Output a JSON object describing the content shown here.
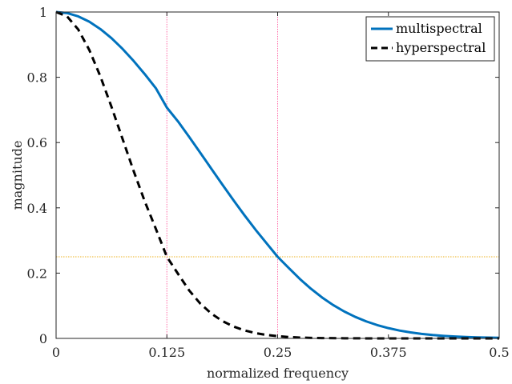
{
  "chart_data": {
    "type": "line",
    "title": "",
    "xlabel": "normalized frequency",
    "ylabel": "magnitude",
    "xlim": [
      0,
      0.5
    ],
    "ylim": [
      0,
      1
    ],
    "x_ticks": [
      0,
      0.125,
      0.25,
      0.375,
      0.5
    ],
    "x_tick_labels": [
      "0",
      "0.125",
      "0.25",
      "0.375",
      "0.5"
    ],
    "y_ticks": [
      0,
      0.2,
      0.4,
      0.6,
      0.8,
      1
    ],
    "y_tick_labels": [
      "0",
      "0.2",
      "0.4",
      "0.6",
      "0.8",
      "1"
    ],
    "grid": false,
    "legend_position": "top-right",
    "series": [
      {
        "name": "multispectral",
        "color": "#0072BD",
        "style": "solid",
        "x": [
          0,
          0.0125,
          0.025,
          0.0375,
          0.05,
          0.0625,
          0.075,
          0.0875,
          0.1,
          0.1125,
          0.125,
          0.1375,
          0.15,
          0.1625,
          0.175,
          0.1875,
          0.2,
          0.2125,
          0.225,
          0.2375,
          0.25,
          0.2625,
          0.275,
          0.2875,
          0.3,
          0.3125,
          0.325,
          0.3375,
          0.35,
          0.3625,
          0.375,
          0.3875,
          0.4,
          0.4125,
          0.425,
          0.4375,
          0.45,
          0.4625,
          0.475,
          0.4875,
          0.5
        ],
        "y": [
          1.0,
          0.9967,
          0.9866,
          0.9702,
          0.9477,
          0.9198,
          0.887,
          0.8501,
          0.8098,
          0.7668,
          0.7071,
          0.665,
          0.618,
          0.5696,
          0.5206,
          0.4718,
          0.4239,
          0.3776,
          0.3333,
          0.2914,
          0.25,
          0.2158,
          0.1823,
          0.1523,
          0.1257,
          0.1025,
          0.0827,
          0.066,
          0.0521,
          0.0407,
          0.0315,
          0.0241,
          0.0183,
          0.0138,
          0.0104,
          0.0078,
          0.0058,
          0.0043,
          0.0032,
          0.0024,
          0.0017
        ]
      },
      {
        "name": "hyperspectral",
        "color": "#000000",
        "style": "dashed",
        "x": [
          0,
          0.0125,
          0.025,
          0.0375,
          0.05,
          0.0625,
          0.075,
          0.0875,
          0.1,
          0.1125,
          0.125,
          0.1375,
          0.15,
          0.1625,
          0.175,
          0.1875,
          0.2,
          0.2125,
          0.225,
          0.2375,
          0.25,
          0.2625,
          0.275,
          0.2875,
          0.3,
          0.325,
          0.35,
          0.375,
          0.4,
          0.425,
          0.45,
          0.475,
          0.5
        ],
        "y": [
          1.0,
          0.9862,
          0.9465,
          0.8836,
          0.8026,
          0.7096,
          0.6112,
          0.513,
          0.4202,
          0.3362,
          0.25,
          0.1982,
          0.1475,
          0.1073,
          0.0765,
          0.0534,
          0.0367,
          0.0247,
          0.0163,
          0.0106,
          0.0068,
          0.0043,
          0.0026,
          0.0016,
          0.001,
          0.0004,
          0.0001,
          0.0,
          0.0,
          0.0,
          0.0,
          0.0,
          0.0
        ]
      }
    ],
    "reference_lines": [
      {
        "orientation": "vertical",
        "value": 0.125,
        "color": "#FF6EA8",
        "style": "dotted"
      },
      {
        "orientation": "vertical",
        "value": 0.25,
        "color": "#FF6EA8",
        "style": "dotted"
      },
      {
        "orientation": "horizontal",
        "value": 0.25,
        "color": "#EDB120",
        "style": "dotted"
      }
    ]
  }
}
